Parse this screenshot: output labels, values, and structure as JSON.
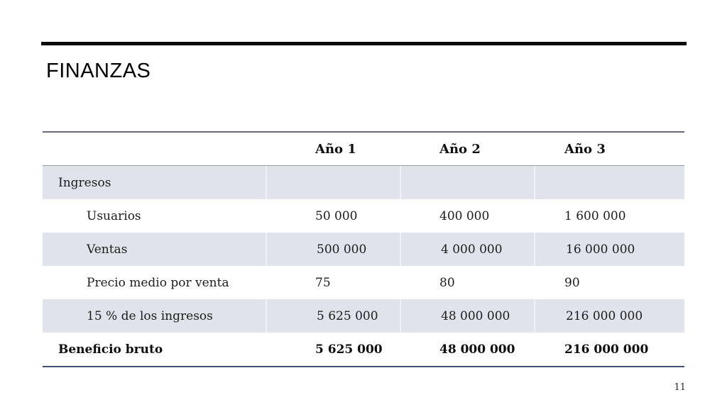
{
  "slide": {
    "title": "FINANZAS",
    "page_number": "11"
  },
  "colors": {
    "row_shade": "#e0e3e9",
    "border_top": "#646b78",
    "border_header": "#9aa0aa",
    "border_bottom": "#42506e",
    "title_rule": "#0a0a0a"
  },
  "chart_data": {
    "type": "table",
    "title": "FINANZAS",
    "columns": [
      "",
      "Año 1",
      "Año 2",
      "Año 3"
    ],
    "rows": [
      {
        "label": "Ingresos",
        "values": [
          "",
          "",
          ""
        ]
      },
      {
        "label": "Usuarios",
        "values": [
          "50 000",
          "400 000",
          "1 600 000"
        ]
      },
      {
        "label": "Ventas",
        "values": [
          "500 000",
          "4 000 000",
          "16 000 000"
        ]
      },
      {
        "label": "Precio medio por venta",
        "values": [
          "75",
          "80",
          "90"
        ]
      },
      {
        "label": "15 % de los ingresos",
        "values": [
          "5 625 000",
          "48 000 000",
          "216 000 000"
        ]
      },
      {
        "label": "Beneficio bruto",
        "values": [
          "5 625 000",
          "48 000 000",
          "216 000 000"
        ]
      }
    ]
  }
}
